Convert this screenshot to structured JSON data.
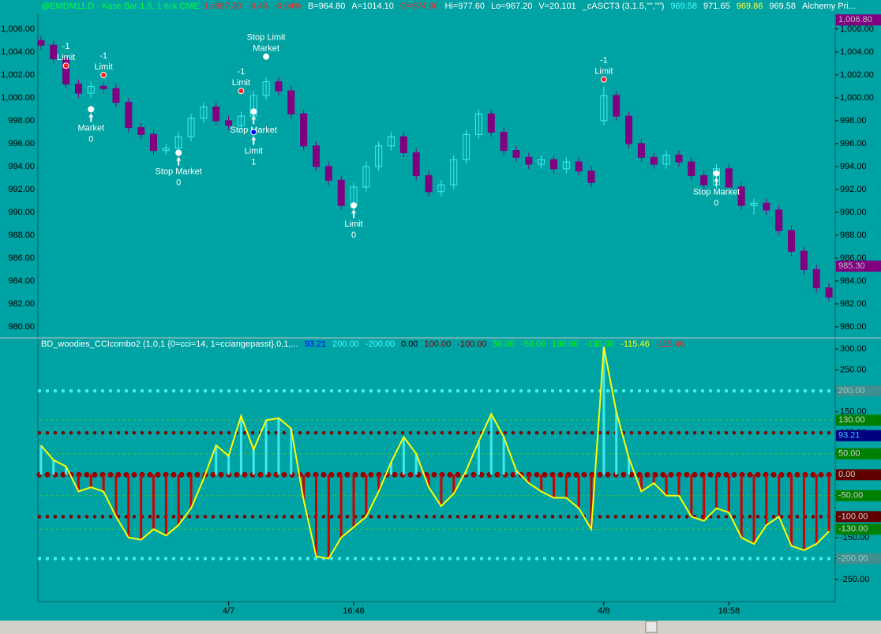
{
  "chart_data": [
    {
      "type": "candlestick",
      "header": [
        {
          "text": "@EMDM11.D - Kase Bar 1.5, 1 tick  CME",
          "color": "#00ff40"
        },
        {
          "text": "L=967.30",
          "color": "#ff2020"
        },
        {
          "text": "-0.40",
          "color": "#ff2020"
        },
        {
          "text": "-0.04%",
          "color": "#ff2020"
        },
        {
          "text": "B=964.80",
          "color": "#ffffff"
        },
        {
          "text": "A=1014.10",
          "color": "#ffffff"
        },
        {
          "text": "O=974.00",
          "color": "#ff2020"
        },
        {
          "text": "Hi=977.60",
          "color": "#ffffff"
        },
        {
          "text": "Lo=967.20",
          "color": "#ffffff"
        },
        {
          "text": "V=20,101",
          "color": "#ffffff"
        },
        {
          "text": "_cASCT3 (3,1.5,\"\",\"\")",
          "color": "#ffffff"
        },
        {
          "text": "969.58",
          "color": "#40ffff"
        },
        {
          "text": "971.65",
          "color": "#ffffff"
        },
        {
          "text": "969.86",
          "color": "#ffff40"
        },
        {
          "text": "969.58",
          "color": "#ffffff"
        },
        {
          "text": "Alchemy Pri...",
          "color": "#ffffff"
        }
      ],
      "categories": [
        null,
        null,
        null,
        null,
        null,
        null,
        null,
        null,
        null,
        null,
        null,
        null,
        null,
        null,
        null,
        "4/7",
        null,
        null,
        null,
        null,
        null,
        null,
        null,
        null,
        null,
        "16:46",
        null,
        null,
        null,
        null,
        null,
        null,
        null,
        null,
        null,
        null,
        null,
        null,
        null,
        null,
        null,
        null,
        null,
        null,
        null,
        "4/8",
        null,
        null,
        null,
        null,
        null,
        null,
        null,
        null,
        null,
        "16:58",
        null,
        null,
        null,
        null,
        null,
        null,
        null,
        null
      ],
      "open": [
        1005.0,
        1004.6,
        1003.4,
        1001.2,
        1000.4,
        1001.0,
        1000.8,
        999.6,
        997.4,
        996.8,
        995.4,
        995.6,
        996.6,
        998.2,
        999.2,
        998.0,
        997.6,
        998.4,
        1000.2,
        1001.4,
        1000.6,
        998.6,
        995.8,
        994.0,
        992.8,
        990.6,
        992.2,
        994.0,
        995.8,
        996.6,
        995.2,
        993.2,
        991.8,
        992.4,
        994.6,
        996.8,
        998.6,
        997.0,
        995.4,
        994.8,
        994.2,
        994.6,
        993.8,
        994.4,
        993.6,
        998.0,
        1000.2,
        998.4,
        996.0,
        994.8,
        994.2,
        995.0,
        994.4,
        993.2,
        992.4,
        993.8,
        992.2,
        990.6,
        990.8,
        990.2,
        988.4,
        986.6,
        985.0,
        983.4
      ],
      "high": [
        1005.4,
        1005.0,
        1003.8,
        1001.6,
        1001.4,
        1001.4,
        1001.2,
        1000.0,
        997.8,
        997.2,
        996.0,
        997.0,
        998.6,
        999.6,
        999.6,
        998.4,
        998.8,
        1000.6,
        1001.8,
        1001.8,
        1001.0,
        999.0,
        996.2,
        994.4,
        993.2,
        992.6,
        994.4,
        996.2,
        997.0,
        997.0,
        995.6,
        993.6,
        992.8,
        995.0,
        997.2,
        999.0,
        999.0,
        997.4,
        995.8,
        995.2,
        995.0,
        995.0,
        994.8,
        994.8,
        994.0,
        1001.0,
        1000.6,
        998.8,
        996.4,
        995.2,
        995.4,
        995.4,
        994.8,
        993.6,
        994.2,
        994.2,
        992.6,
        991.2,
        991.2,
        990.6,
        988.8,
        987.0,
        985.4,
        983.8
      ],
      "low": [
        1004.2,
        1003.0,
        1000.8,
        1000.0,
        1000.0,
        1000.4,
        999.2,
        997.0,
        996.4,
        995.0,
        995.0,
        995.2,
        996.2,
        997.8,
        997.6,
        997.2,
        997.2,
        998.0,
        999.8,
        1000.2,
        998.2,
        995.4,
        993.6,
        992.4,
        990.2,
        990.2,
        991.8,
        993.6,
        995.4,
        994.8,
        992.8,
        991.4,
        991.4,
        992.0,
        994.2,
        996.4,
        996.6,
        995.0,
        994.4,
        993.8,
        993.8,
        993.4,
        993.4,
        993.2,
        992.2,
        997.6,
        998.0,
        995.6,
        994.4,
        993.8,
        993.8,
        994.0,
        992.8,
        992.0,
        992.0,
        991.8,
        990.2,
        989.8,
        989.8,
        988.0,
        986.2,
        984.6,
        983.0,
        982.2
      ],
      "close": [
        1004.6,
        1003.4,
        1001.2,
        1000.4,
        1001.0,
        1000.8,
        999.6,
        997.4,
        996.8,
        995.4,
        995.6,
        996.6,
        998.2,
        999.2,
        998.0,
        997.6,
        998.4,
        1000.2,
        1001.4,
        1000.6,
        998.6,
        995.8,
        994.0,
        992.8,
        990.6,
        992.2,
        994.0,
        995.8,
        996.6,
        995.2,
        993.2,
        991.8,
        992.4,
        994.6,
        996.8,
        998.6,
        997.0,
        995.4,
        994.8,
        994.2,
        994.6,
        993.8,
        994.4,
        993.6,
        992.6,
        1000.2,
        998.4,
        996.0,
        994.8,
        994.2,
        995.0,
        994.4,
        993.2,
        992.4,
        993.8,
        992.2,
        990.6,
        990.8,
        990.2,
        988.4,
        986.6,
        985.0,
        983.4,
        982.6
      ],
      "up_color": "#40f0f0",
      "down_color": "#800080",
      "ylim": [
        979.03,
        1007.3
      ],
      "yticks": [
        {
          "value": 980,
          "label": "980.00"
        },
        {
          "value": 982,
          "label": "982.00"
        },
        {
          "value": 984,
          "label": "984.00"
        },
        {
          "value": 986,
          "label": "986.00"
        },
        {
          "value": 988,
          "label": "988.00"
        },
        {
          "value": 990,
          "label": "990.00"
        },
        {
          "value": 992,
          "label": "992.00"
        },
        {
          "value": 994,
          "label": "994.00"
        },
        {
          "value": 996,
          "label": "996.00"
        },
        {
          "value": 998,
          "label": "998.00"
        },
        {
          "value": 1000,
          "label": "1,000.00"
        },
        {
          "value": 1002,
          "label": "1,002.00"
        },
        {
          "value": 1004,
          "label": "1,004.00"
        },
        {
          "value": 1006,
          "label": "1,006.00"
        }
      ],
      "badges": [
        {
          "value": 1006.8,
          "label": "1,006.80",
          "color": "#800080"
        },
        {
          "value": 985.3,
          "label": "985.30",
          "color": "#800080"
        }
      ],
      "orders": [
        {
          "index": 2,
          "price": 1002.8,
          "color": "#ff2020",
          "position": "above",
          "lines": [
            "-1",
            "Limit"
          ]
        },
        {
          "index": 5,
          "price": 1002.0,
          "color": "#ff2020",
          "position": "above",
          "lines": [
            "-1",
            "Limit"
          ]
        },
        {
          "index": 4,
          "price": 999.0,
          "color": "#ffffff",
          "position": "below",
          "lines": [
            "Market",
            "0"
          ]
        },
        {
          "index": 11,
          "price": 995.2,
          "color": "#ffffff",
          "position": "below",
          "lines": [
            "Stop Market",
            "0"
          ]
        },
        {
          "index": 16,
          "price": 1000.6,
          "color": "#ff2020",
          "position": "above",
          "lines": [
            "-1",
            "Limit"
          ]
        },
        {
          "index": 18,
          "price": 1003.6,
          "color": "#ffffff",
          "position": "above",
          "lines": [
            "Stop Limit",
            "Market"
          ]
        },
        {
          "index": 17,
          "price": 998.8,
          "color": "#ffffff",
          "position": "below",
          "lines": [
            "Stop Market"
          ]
        },
        {
          "index": 17,
          "price": 997.0,
          "color": "#0000ff",
          "position": "below",
          "lines": [
            "Limit",
            "1"
          ]
        },
        {
          "index": 25,
          "price": 990.6,
          "color": "#ffffff",
          "position": "below",
          "lines": [
            "Limit",
            "0"
          ]
        },
        {
          "index": 45,
          "price": 1001.6,
          "color": "#ff2020",
          "position": "above",
          "lines": [
            "-1",
            "Limit"
          ]
        },
        {
          "index": 54,
          "price": 993.4,
          "color": "#ffffff",
          "position": "below",
          "lines": [
            "Stop Market",
            "0"
          ]
        }
      ]
    },
    {
      "type": "cci",
      "header": [
        {
          "text": "BD_woodies_CCIcombo2 (1,0,1  {0=cci=14, 1=cciangepasst},0,1,...",
          "color": "#ffffff"
        },
        {
          "text": "93.21",
          "color": "#0000ff"
        },
        {
          "text": "200.00",
          "color": "#40ffff"
        },
        {
          "text": "-200.00",
          "color": "#40ffff"
        },
        {
          "text": "0.00",
          "color": "#000000"
        },
        {
          "text": "100.00",
          "color": "#800000"
        },
        {
          "text": "-100.00",
          "color": "#800000"
        },
        {
          "text": "50.00",
          "color": "#00ff00"
        },
        {
          "text": "-50.00",
          "color": "#00ff00"
        },
        {
          "text": "130.00",
          "color": "#00ff00"
        },
        {
          "text": "-130.00",
          "color": "#00ff00"
        },
        {
          "text": "-115.46",
          "color": "#ffff00"
        },
        {
          "text": "-115.46",
          "color": "#ff2020"
        }
      ],
      "values": [
        70,
        35,
        20,
        -40,
        -30,
        -40,
        -100,
        -150,
        -155,
        -130,
        -145,
        -120,
        -80,
        -10,
        70,
        45,
        140,
        60,
        130,
        135,
        110,
        -60,
        -195,
        -200,
        -150,
        -125,
        -100,
        -40,
        30,
        90,
        50,
        -30,
        -75,
        -45,
        10,
        80,
        145,
        90,
        10,
        -20,
        -40,
        -55,
        -55,
        -80,
        -130,
        305,
        150,
        40,
        -40,
        -20,
        -50,
        -50,
        -100,
        -110,
        -80,
        -90,
        -150,
        -165,
        -120,
        -100,
        -170,
        -180,
        -165,
        -135
      ],
      "line_color": "#ffff00",
      "up_color": "#40e8f0",
      "down_color": "#d00000",
      "ylim": [
        -302.7,
        326.4
      ],
      "yticks": [
        {
          "value": 300,
          "label": "300.00"
        },
        {
          "value": 250,
          "label": "250.00"
        },
        {
          "value": 200,
          "label": "200.00"
        },
        {
          "value": 150,
          "label": "150.00"
        },
        {
          "value": 100,
          "label": "100.00"
        },
        {
          "value": 50,
          "label": "50.00"
        },
        {
          "value": 0,
          "label": "0.00"
        },
        {
          "value": -50,
          "label": "-50.00"
        },
        {
          "value": -100,
          "label": "-100.00"
        },
        {
          "value": -150,
          "label": "-150.00"
        },
        {
          "value": -200,
          "label": "-200.00"
        },
        {
          "value": -250,
          "label": "-250.00"
        }
      ],
      "levels": [
        {
          "value": 200,
          "color": "#40f0f0",
          "style": "dots",
          "label": "200.00",
          "badge": "#3e8f8f"
        },
        {
          "value": 130,
          "color": "#40c040",
          "style": "dash",
          "label": "130.00",
          "badge": "#008000"
        },
        {
          "value": 100,
          "color": "#800000",
          "style": "dots"
        },
        {
          "value": 50,
          "color": "#40c040",
          "style": "dash",
          "label": "50.00",
          "badge": "#008000"
        },
        {
          "value": 0,
          "color": "#990000",
          "style": "dots",
          "label": "0.00",
          "badge": "#600000"
        },
        {
          "value": -50,
          "color": "#40c040",
          "style": "dash",
          "label": "-50.00",
          "badge": "#008000"
        },
        {
          "value": -100,
          "color": "#800000",
          "style": "dots",
          "label": "-100.00",
          "badge": "#600000"
        },
        {
          "value": -130,
          "color": "#40c040",
          "style": "dash",
          "label": "-130.00",
          "badge": "#008000"
        },
        {
          "value": -200,
          "color": "#40f0f0",
          "style": "dots",
          "label": "-200.00",
          "badge": "#3e8f8f"
        }
      ],
      "current": {
        "value": 93.21,
        "label": "93.21",
        "color": "#000080"
      }
    }
  ]
}
